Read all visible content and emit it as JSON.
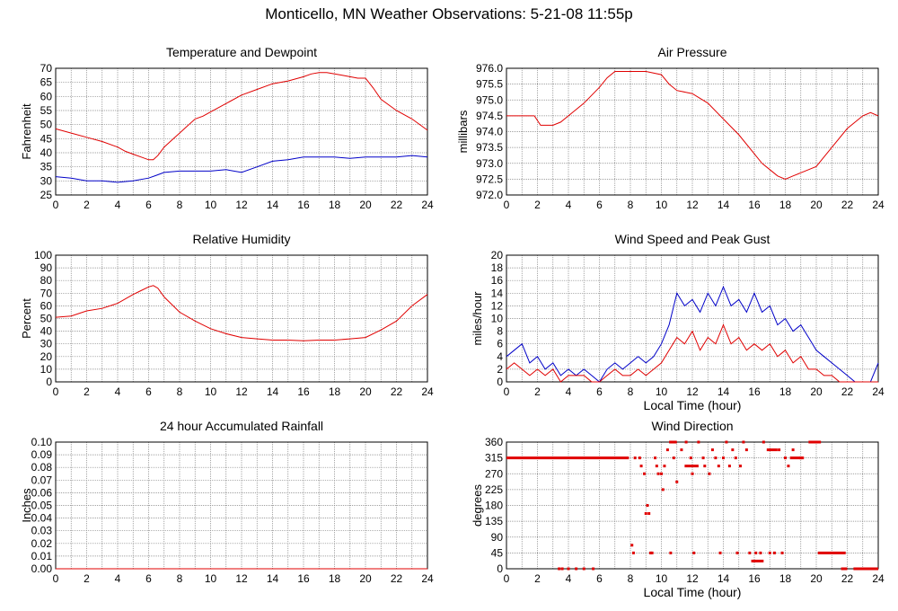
{
  "title": "Monticello, MN Weather Observations: 5-21-08 11:55p",
  "colors": {
    "red": "#e00000",
    "blue": "#0000c8",
    "grid": "#808080",
    "frame": "#000000"
  },
  "chart_data": [
    {
      "id": "temp",
      "type": "line",
      "title": "Temperature and Dewpoint",
      "xlabel": "",
      "ylabel": "Fahrenheit",
      "xlim": [
        0,
        24
      ],
      "ylim": [
        25,
        70
      ],
      "xticks": [
        "0",
        "2",
        "4",
        "6",
        "8",
        "10",
        "12",
        "14",
        "16",
        "18",
        "20",
        "22",
        "24"
      ],
      "yticks": [
        "25",
        "30",
        "35",
        "40",
        "45",
        "50",
        "55",
        "60",
        "65",
        "70"
      ],
      "series": [
        {
          "color": "#e00000",
          "x": [
            0,
            1,
            2,
            3,
            4,
            4.5,
            5,
            5.5,
            6,
            6.3,
            6.6,
            7,
            7.5,
            8,
            8.5,
            9,
            9.5,
            10,
            11,
            12,
            13,
            14,
            15,
            16,
            16.5,
            17,
            17.5,
            18,
            18.5,
            19,
            19.5,
            20,
            20.5,
            21,
            22,
            23,
            24
          ],
          "y": [
            48.5,
            47,
            45.5,
            44,
            42,
            40.5,
            39.5,
            38.5,
            37.5,
            37.5,
            39,
            42,
            44.5,
            47,
            49.5,
            52,
            53,
            54.5,
            57.5,
            60.5,
            62.5,
            64.5,
            65.5,
            67,
            68,
            68.5,
            68.5,
            68,
            67.5,
            67,
            66.5,
            66.5,
            63,
            59,
            55,
            52,
            48
          ]
        },
        {
          "color": "#0000c8",
          "x": [
            0,
            1,
            2,
            3,
            4,
            5,
            6,
            6.5,
            7,
            8,
            9,
            10,
            11,
            12,
            13,
            14,
            15,
            16,
            17,
            18,
            19,
            20,
            21,
            22,
            23,
            24
          ],
          "y": [
            31.5,
            31,
            30,
            30,
            29.5,
            30,
            31,
            32,
            33,
            33.5,
            33.5,
            33.5,
            34,
            33,
            35,
            37,
            37.5,
            38.5,
            38.5,
            38.5,
            38,
            38.5,
            38.5,
            38.5,
            39,
            38.5
          ]
        }
      ]
    },
    {
      "id": "pres",
      "type": "line",
      "title": "Air Pressure",
      "xlabel": "",
      "ylabel": "millibars",
      "xlim": [
        0,
        24
      ],
      "ylim": [
        972.0,
        976.0
      ],
      "xticks": [
        "0",
        "2",
        "4",
        "6",
        "8",
        "10",
        "12",
        "14",
        "16",
        "18",
        "20",
        "22",
        "24"
      ],
      "yticks": [
        "972.0",
        "972.5",
        "973.0",
        "973.5",
        "974.0",
        "974.5",
        "975.0",
        "975.5",
        "976.0"
      ],
      "series": [
        {
          "color": "#e00000",
          "x": [
            0,
            1,
            1.8,
            2.2,
            3,
            3.5,
            4,
            5,
            6,
            6.5,
            7,
            8,
            9,
            10,
            10.5,
            11,
            12,
            13,
            14,
            15,
            16,
            16.5,
            17,
            17.5,
            18,
            18.5,
            19,
            19.5,
            20,
            20.5,
            21,
            22,
            23,
            23.5,
            24
          ],
          "y": [
            974.5,
            974.5,
            974.5,
            974.2,
            974.2,
            974.3,
            974.5,
            974.9,
            975.4,
            975.7,
            975.9,
            975.9,
            975.9,
            975.8,
            975.5,
            975.3,
            975.2,
            974.9,
            974.4,
            973.9,
            973.3,
            973.0,
            972.8,
            972.6,
            972.5,
            972.6,
            972.7,
            972.8,
            972.9,
            973.2,
            973.5,
            974.1,
            974.5,
            974.6,
            974.5
          ]
        }
      ]
    },
    {
      "id": "rh",
      "type": "line",
      "title": "Relative Humidity",
      "xlabel": "",
      "ylabel": "Percent",
      "xlim": [
        0,
        24
      ],
      "ylim": [
        0,
        100
      ],
      "xticks": [
        "0",
        "2",
        "4",
        "6",
        "8",
        "10",
        "12",
        "14",
        "16",
        "18",
        "20",
        "22",
        "24"
      ],
      "yticks": [
        "0",
        "10",
        "20",
        "30",
        "40",
        "50",
        "60",
        "70",
        "80",
        "90",
        "100"
      ],
      "series": [
        {
          "color": "#e00000",
          "x": [
            0,
            1,
            2,
            3,
            4,
            5,
            5.5,
            6,
            6.3,
            6.6,
            7,
            8,
            9,
            10,
            11,
            12,
            13,
            14,
            15,
            16,
            17,
            18,
            19,
            20,
            21,
            22,
            23,
            24
          ],
          "y": [
            51,
            52,
            56,
            58,
            62,
            69,
            72,
            75,
            76,
            74,
            67,
            55,
            48,
            42,
            38,
            35,
            34,
            33,
            33,
            32.5,
            33,
            33,
            34,
            35,
            41,
            48,
            60,
            69
          ]
        }
      ]
    },
    {
      "id": "wind",
      "type": "line",
      "title": "Wind Speed and Peak Gust",
      "xlabel": "Local Time (hour)",
      "ylabel": "miles/hour",
      "xlim": [
        0,
        24
      ],
      "ylim": [
        0,
        20
      ],
      "xticks": [
        "0",
        "2",
        "4",
        "6",
        "8",
        "10",
        "12",
        "14",
        "16",
        "18",
        "20",
        "22",
        "24"
      ],
      "yticks": [
        "0",
        "2",
        "4",
        "6",
        "8",
        "10",
        "12",
        "14",
        "16",
        "18",
        "20"
      ],
      "series": [
        {
          "color": "#0000c8",
          "x": [
            0,
            0.5,
            1,
            1.5,
            2,
            2.5,
            3,
            3.5,
            4,
            4.5,
            5,
            5.5,
            6,
            6.5,
            7,
            7.5,
            8,
            8.5,
            9,
            9.5,
            10,
            10.5,
            11,
            11.5,
            12,
            12.5,
            13,
            13.5,
            14,
            14.5,
            15,
            15.5,
            16,
            16.5,
            17,
            17.5,
            18,
            18.5,
            19,
            19.5,
            20,
            20.5,
            21,
            21.5,
            22,
            22.5,
            23,
            23.5,
            24
          ],
          "y": [
            4,
            5,
            6,
            3,
            4,
            2,
            3,
            1,
            2,
            1,
            2,
            1,
            0,
            2,
            3,
            2,
            3,
            4,
            3,
            4,
            6,
            9,
            14,
            12,
            13,
            11,
            14,
            12,
            15,
            12,
            13,
            11,
            14,
            11,
            12,
            9,
            10,
            8,
            9,
            7,
            5,
            4,
            3,
            2,
            1,
            0,
            0,
            0,
            3
          ]
        },
        {
          "color": "#e00000",
          "x": [
            0,
            0.5,
            1,
            1.5,
            2,
            2.5,
            3,
            3.5,
            4,
            4.5,
            5,
            5.5,
            6,
            6.5,
            7,
            7.5,
            8,
            8.5,
            9,
            9.5,
            10,
            10.5,
            11,
            11.5,
            12,
            12.5,
            13,
            13.5,
            14,
            14.5,
            15,
            15.5,
            16,
            16.5,
            17,
            17.5,
            18,
            18.5,
            19,
            19.5,
            20,
            20.5,
            21,
            21.5,
            22,
            22.5,
            23,
            23.5,
            24
          ],
          "y": [
            2,
            3,
            2,
            1,
            2,
            1,
            2,
            0,
            1,
            1,
            1,
            0,
            0,
            1,
            2,
            1,
            1,
            2,
            1,
            2,
            3,
            5,
            7,
            6,
            8,
            5,
            7,
            6,
            9,
            6,
            7,
            5,
            6,
            5,
            6,
            4,
            5,
            3,
            4,
            2,
            2,
            1,
            1,
            0,
            0,
            0,
            0,
            0,
            0
          ]
        }
      ]
    },
    {
      "id": "rain",
      "type": "line",
      "title": "24 hour Accumulated Rainfall",
      "xlabel": "",
      "ylabel": "Inches",
      "xlim": [
        0,
        24
      ],
      "ylim": [
        0,
        0.1
      ],
      "xticks": [
        "0",
        "2",
        "4",
        "6",
        "8",
        "10",
        "12",
        "14",
        "16",
        "18",
        "20",
        "22",
        "24"
      ],
      "yticks": [
        "0.00",
        "0.01",
        "0.02",
        "0.03",
        "0.04",
        "0.05",
        "0.06",
        "0.07",
        "0.08",
        "0.09",
        "0.10"
      ],
      "series": [
        {
          "color": "#e00000",
          "x": [
            0,
            24
          ],
          "y": [
            0,
            0
          ]
        }
      ]
    },
    {
      "id": "dir",
      "type": "scatter",
      "title": "Wind Direction",
      "xlabel": "Local Time (hour)",
      "ylabel": "degrees",
      "xlim": [
        0,
        24
      ],
      "ylim": [
        0,
        360
      ],
      "xticks": [
        "0",
        "2",
        "4",
        "6",
        "8",
        "10",
        "12",
        "14",
        "16",
        "18",
        "20",
        "22",
        "24"
      ],
      "yticks": [
        "0",
        "45",
        "90",
        "135",
        "180",
        "225",
        "270",
        "315",
        "360"
      ],
      "segments": [
        {
          "x0": 0,
          "x1": 7.9,
          "y": 315
        },
        {
          "x0": 10.5,
          "x1": 11.0,
          "y": 360
        },
        {
          "x0": 11.5,
          "x1": 12.4,
          "y": 292
        },
        {
          "x0": 16.8,
          "x1": 17.5,
          "y": 338
        },
        {
          "x0": 18.3,
          "x1": 19.2,
          "y": 315
        },
        {
          "x0": 19.5,
          "x1": 20.3,
          "y": 360
        },
        {
          "x0": 20.1,
          "x1": 21.9,
          "y": 45
        },
        {
          "x0": 21.6,
          "x1": 22.0,
          "y": 0
        },
        {
          "x0": 22.4,
          "x1": 24.0,
          "y": 0
        },
        {
          "x0": 15.8,
          "x1": 16.6,
          "y": 22
        }
      ],
      "points": [
        {
          "x": 3.4,
          "y": 0
        },
        {
          "x": 3.6,
          "y": 0
        },
        {
          "x": 4.0,
          "y": 0
        },
        {
          "x": 4.5,
          "y": 0
        },
        {
          "x": 5.0,
          "y": 0
        },
        {
          "x": 5.6,
          "y": 0
        },
        {
          "x": 8.1,
          "y": 67
        },
        {
          "x": 8.2,
          "y": 45
        },
        {
          "x": 8.3,
          "y": 315
        },
        {
          "x": 8.6,
          "y": 315
        },
        {
          "x": 8.7,
          "y": 292
        },
        {
          "x": 8.9,
          "y": 270
        },
        {
          "x": 9.0,
          "y": 157
        },
        {
          "x": 9.1,
          "y": 180
        },
        {
          "x": 9.2,
          "y": 157
        },
        {
          "x": 9.3,
          "y": 45
        },
        {
          "x": 9.4,
          "y": 45
        },
        {
          "x": 9.6,
          "y": 315
        },
        {
          "x": 9.7,
          "y": 292
        },
        {
          "x": 9.8,
          "y": 270
        },
        {
          "x": 10.0,
          "y": 270
        },
        {
          "x": 10.1,
          "y": 225
        },
        {
          "x": 10.2,
          "y": 292
        },
        {
          "x": 10.4,
          "y": 338
        },
        {
          "x": 10.6,
          "y": 45
        },
        {
          "x": 10.8,
          "y": 315
        },
        {
          "x": 11.0,
          "y": 247
        },
        {
          "x": 11.3,
          "y": 338
        },
        {
          "x": 11.6,
          "y": 360
        },
        {
          "x": 11.9,
          "y": 315
        },
        {
          "x": 12.0,
          "y": 270
        },
        {
          "x": 12.1,
          "y": 45
        },
        {
          "x": 12.4,
          "y": 360
        },
        {
          "x": 12.7,
          "y": 315
        },
        {
          "x": 12.8,
          "y": 292
        },
        {
          "x": 13.1,
          "y": 270
        },
        {
          "x": 13.3,
          "y": 338
        },
        {
          "x": 13.5,
          "y": 315
        },
        {
          "x": 13.7,
          "y": 292
        },
        {
          "x": 13.8,
          "y": 45
        },
        {
          "x": 14.0,
          "y": 315
        },
        {
          "x": 14.2,
          "y": 360
        },
        {
          "x": 14.4,
          "y": 292
        },
        {
          "x": 14.6,
          "y": 338
        },
        {
          "x": 14.8,
          "y": 315
        },
        {
          "x": 14.9,
          "y": 45
        },
        {
          "x": 15.1,
          "y": 292
        },
        {
          "x": 15.3,
          "y": 360
        },
        {
          "x": 15.5,
          "y": 338
        },
        {
          "x": 15.7,
          "y": 45
        },
        {
          "x": 16.1,
          "y": 45
        },
        {
          "x": 16.4,
          "y": 45
        },
        {
          "x": 16.6,
          "y": 360
        },
        {
          "x": 17.0,
          "y": 45
        },
        {
          "x": 17.3,
          "y": 45
        },
        {
          "x": 17.6,
          "y": 338
        },
        {
          "x": 17.8,
          "y": 45
        },
        {
          "x": 18.0,
          "y": 315
        },
        {
          "x": 18.2,
          "y": 292
        },
        {
          "x": 18.5,
          "y": 338
        },
        {
          "x": 19.0,
          "y": 315
        }
      ]
    }
  ]
}
